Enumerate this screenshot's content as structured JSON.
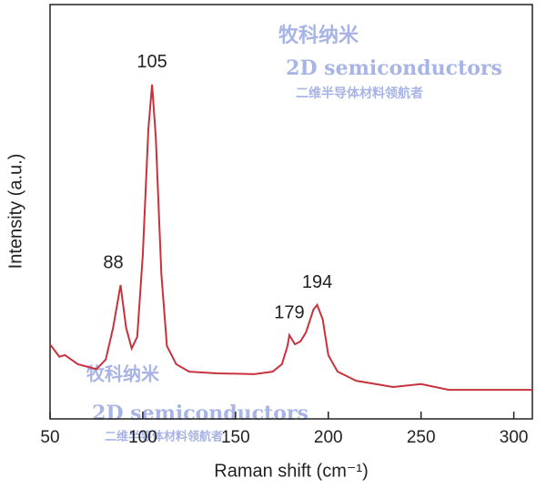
{
  "chart_data": {
    "type": "line",
    "xlabel": "Raman shift (cm⁻¹)",
    "ylabel": "Intensity (a.u.)",
    "x": [
      50,
      55,
      58,
      65,
      75,
      80,
      84,
      88,
      91,
      94,
      97,
      100,
      103,
      105,
      107,
      110,
      113,
      118,
      125,
      140,
      160,
      170,
      175,
      178,
      179,
      182,
      185,
      188,
      192,
      194,
      197,
      200,
      205,
      215,
      235,
      250,
      265,
      290,
      310
    ],
    "series": [
      {
        "color": "#c8323c",
        "values": [
          18,
          15,
          15.4,
          13.2,
          12,
          14.3,
          22,
          32.3,
          22,
          17,
          19.8,
          39.6,
          70,
          80.7,
          68,
          35,
          17.6,
          13.2,
          11.4,
          11,
          10.8,
          11.4,
          13.2,
          17.6,
          20.2,
          18,
          18.7,
          20.9,
          26.4,
          27.5,
          24,
          15.4,
          11.4,
          9.2,
          7.7,
          8.4,
          7,
          7,
          7
        ]
      }
    ],
    "annotations": [
      {
        "text": "88",
        "x": 88,
        "y": 32.3
      },
      {
        "text": "105",
        "x": 105,
        "y": 80.7
      },
      {
        "text": "179",
        "x": 179,
        "y": 20.2
      },
      {
        "text": "194",
        "x": 194,
        "y": 27.5
      }
    ],
    "xlim": [
      50,
      310
    ],
    "xticks": [
      50,
      100,
      150,
      200,
      250,
      300
    ],
    "ylim": [
      0,
      100
    ],
    "watermark": {
      "brand": "牧科纳米",
      "name": "2D semiconductors",
      "slogan": "二维半导体材料领航者"
    }
  }
}
